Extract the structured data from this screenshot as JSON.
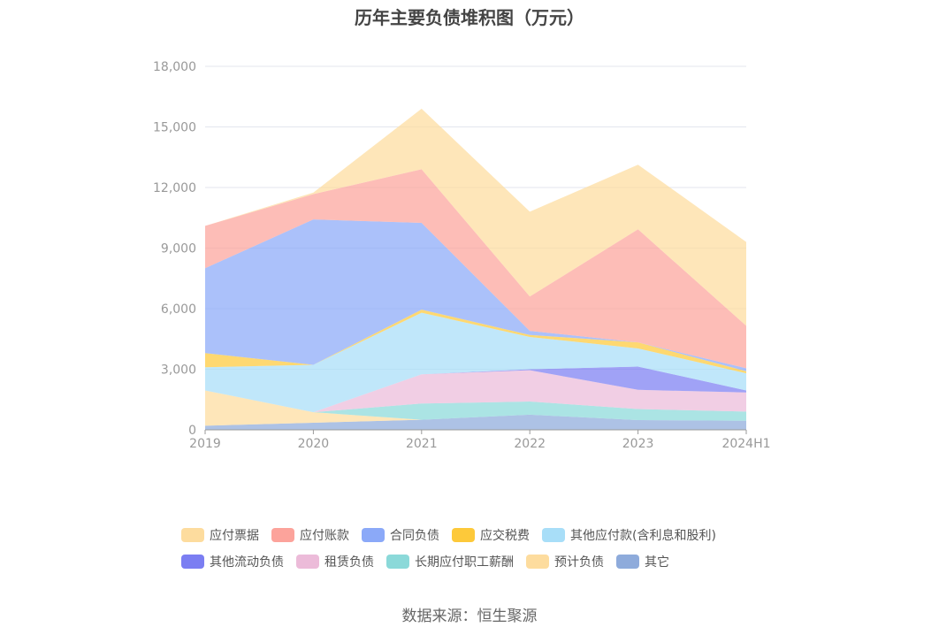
{
  "chart_data": {
    "type": "area",
    "stacked": true,
    "title": "历年主要负债堆积图（万元）",
    "categories": [
      "2019",
      "2020",
      "2021",
      "2022",
      "2023",
      "2024H1"
    ],
    "y_ticks": [
      "0",
      "3,000",
      "6,000",
      "9,000",
      "12,000",
      "15,000",
      "18,000"
    ],
    "ylim": [
      0,
      18000
    ],
    "grid": true,
    "legend_position": "bottom",
    "series": [
      {
        "name": "其它",
        "color": "#8eabdb",
        "values": [
          200,
          350,
          500,
          750,
          480,
          450
        ]
      },
      {
        "name": "预计负债",
        "color": "#fddc9e",
        "values": [
          1750,
          520,
          0,
          0,
          0,
          0
        ]
      },
      {
        "name": "长期应付职工薪酬",
        "color": "#8bd9d9",
        "values": [
          0,
          0,
          800,
          650,
          550,
          450
        ]
      },
      {
        "name": "租赁负债",
        "color": "#ecbbd9",
        "values": [
          0,
          0,
          1450,
          1550,
          950,
          950
        ]
      },
      {
        "name": "其他流动负债",
        "color": "#7b7ef2",
        "values": [
          0,
          0,
          0,
          50,
          1150,
          100
        ]
      },
      {
        "name": "其他应付款(含利息和股利)",
        "color": "#a8def8",
        "values": [
          1150,
          2350,
          3050,
          1600,
          900,
          850
        ]
      },
      {
        "name": "应交税费",
        "color": "#fdc93a",
        "values": [
          700,
          0,
          150,
          100,
          300,
          100
        ]
      },
      {
        "name": "合同负债",
        "color": "#8ba9f8",
        "values": [
          4200,
          7200,
          4300,
          200,
          0,
          150
        ]
      },
      {
        "name": "应付账款",
        "color": "#fca39b",
        "values": [
          2100,
          1250,
          2650,
          1700,
          5600,
          2100
        ]
      },
      {
        "name": "应付票据",
        "color": "#fddc9e",
        "values": [
          0,
          80,
          3000,
          4200,
          3200,
          4150
        ]
      }
    ],
    "legend_order": [
      "应付票据",
      "应付账款",
      "合同负债",
      "应交税费",
      "其他应付款(含利息和股利)",
      "其他流动负债",
      "租赁负债",
      "长期应付职工薪酬",
      "预计负债",
      "其它"
    ]
  },
  "source": "数据来源：恒生聚源"
}
